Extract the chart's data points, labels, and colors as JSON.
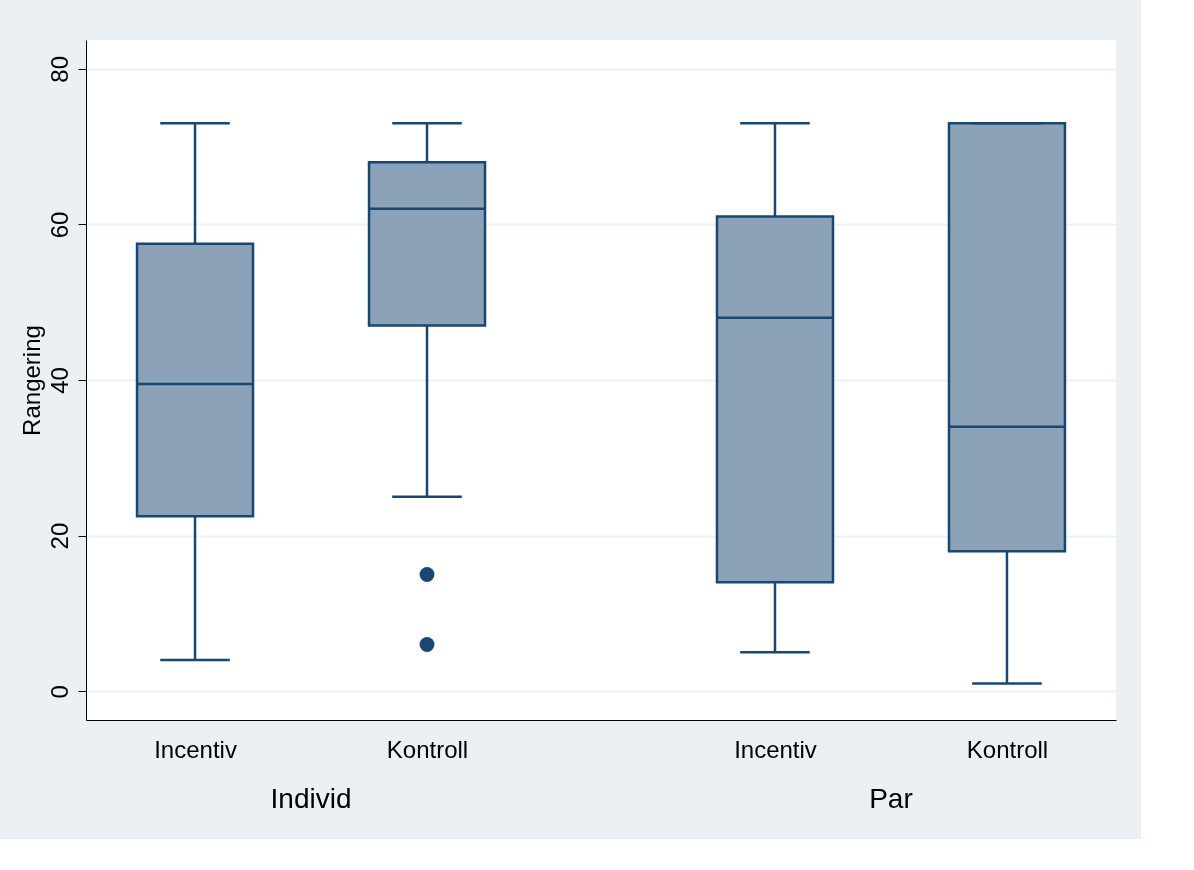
{
  "chart_data": {
    "type": "box",
    "ylabel": "Rangering",
    "categories": [
      "Incentiv",
      "Kontroll",
      "Incentiv",
      "Kontroll"
    ],
    "boxes": [
      {
        "low": 4,
        "q1": 22.5,
        "median": 39.5,
        "q3": 57.5,
        "high": 73
      },
      {
        "low": 25,
        "q1": 47,
        "median": 62,
        "q3": 68,
        "high": 73,
        "outliers": [
          15,
          6
        ]
      },
      {
        "low": 5,
        "q1": 14,
        "median": 48,
        "q3": 61,
        "high": 73
      },
      {
        "low": 1,
        "q1": 18,
        "median": 34,
        "q3": 73,
        "high": 73
      }
    ],
    "colors": [
      "#8ca2b8",
      "#8ca2b8",
      "#8ca2b8",
      "#8ca2b8"
    ],
    "annotations": [
      "Individ",
      "Par"
    ],
    "ylim": [
      -3.7,
      83.7
    ],
    "yticks": [
      0,
      20,
      40,
      60,
      80
    ],
    "grid": "y"
  }
}
